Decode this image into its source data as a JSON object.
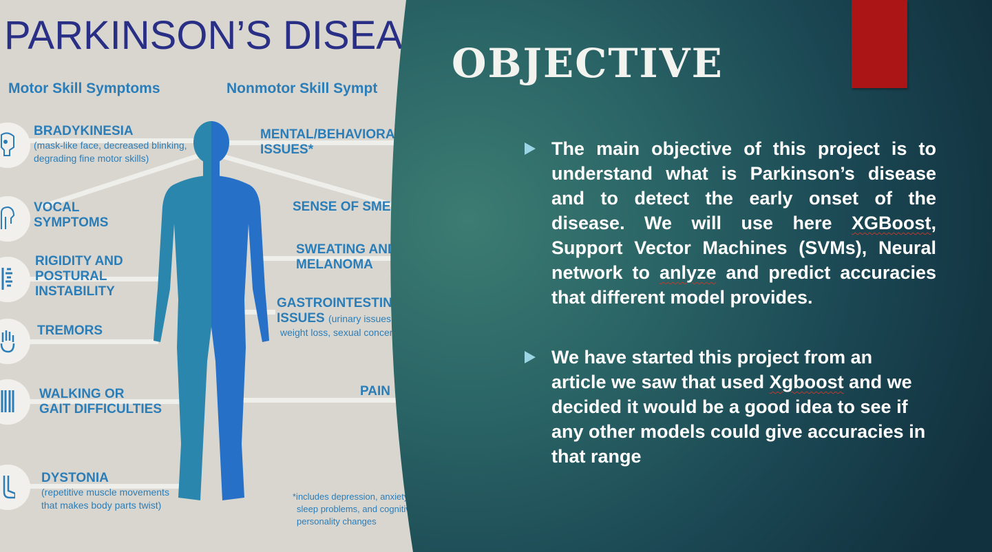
{
  "infographic": {
    "title": "PARKINSON’S DISEAS",
    "motor_heading": "Motor Skill Symptoms",
    "nonmotor_heading": "Nonmotor Skill Sympt",
    "motor": [
      {
        "head": "BRADYKINESIA",
        "desc": [
          "(mask-like face, decreased blinking,",
          "degrading fine motor skills)"
        ]
      },
      {
        "head": "VOCAL",
        "head2": "SYMPTOMS"
      },
      {
        "head": "RIGIDITY AND",
        "head2": "POSTURAL",
        "head3": "INSTABILITY"
      },
      {
        "head": "TREMORS"
      },
      {
        "head": "WALKING OR",
        "head2": "GAIT DIFFICULTIES"
      },
      {
        "head": "DYSTONIA",
        "desc": [
          "(repetitive muscle movements",
          "that makes body parts twist)"
        ]
      }
    ],
    "nonmotor": [
      {
        "head": "MENTAL/BEHAVIORAL",
        "head2": "ISSUES*"
      },
      {
        "head": "SENSE OF SMELL"
      },
      {
        "head": "SWEATING AND",
        "head2": "MELANOMA"
      },
      {
        "head": "GASTROINTESTINAL",
        "head2": "ISSUES",
        "inline": "(urinary issues,",
        "desc2": "weight loss, sexual concerns)"
      },
      {
        "head": "PAIN"
      }
    ],
    "footnote": [
      "*includes depression, anxiety,",
      "sleep problems, and cognitive",
      "personality changes"
    ]
  },
  "slide": {
    "title": "OBJECTIVE",
    "bullets": [
      {
        "parts": [
          "The main objective of this project  is to understand what is Parkinson’s disease and to detect the early onset of the disease. We will use here ",
          "XGBoost",
          ", Support Vector Machines (SVMs), Neural network to ",
          "anlyze",
          " and predict accuracies that different model provides."
        ]
      },
      {
        "parts": [
          "We have started this project from an article we saw that used ",
          "Xgboost",
          " and we decided it would be a good idea to see if any other models could give accuracies in that range"
        ]
      }
    ]
  },
  "colors": {
    "accent_red": "#ac1515",
    "bullet_arrow": "#9bd5e4",
    "infographic_blue": "#2b7db8",
    "title_navy": "#2a2f86"
  }
}
